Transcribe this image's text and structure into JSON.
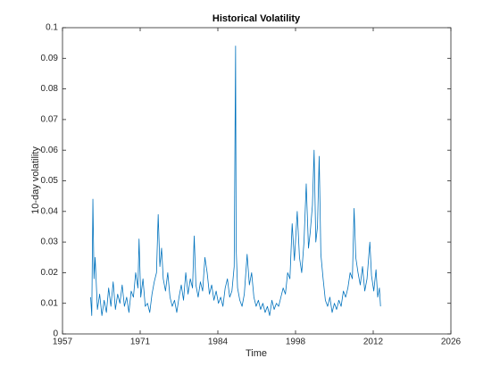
{
  "chart_data": {
    "type": "line",
    "title": "Historical Volatility",
    "x_label": "Time",
    "y_label": "10-day volatility",
    "x": [
      1962.0,
      1962.2,
      1962.4,
      1962.6,
      1962.8,
      1963.2,
      1963.6,
      1964.0,
      1964.4,
      1964.8,
      1965.2,
      1965.6,
      1966.0,
      1966.4,
      1966.8,
      1967.2,
      1967.6,
      1968.0,
      1968.4,
      1968.8,
      1969.2,
      1969.6,
      1970.0,
      1970.4,
      1970.6,
      1970.9,
      1971.3,
      1971.7,
      1972.1,
      1972.5,
      1972.9,
      1973.3,
      1973.7,
      1974.0,
      1974.3,
      1974.6,
      1974.9,
      1975.3,
      1975.7,
      1976.1,
      1976.5,
      1976.9,
      1977.3,
      1977.7,
      1978.1,
      1978.5,
      1978.9,
      1979.3,
      1979.7,
      1980.1,
      1980.4,
      1980.7,
      1981.1,
      1981.5,
      1981.9,
      1982.3,
      1982.7,
      1983.1,
      1983.5,
      1983.9,
      1984.3,
      1984.7,
      1985.1,
      1985.5,
      1985.9,
      1986.3,
      1986.7,
      1987.1,
      1987.5,
      1987.75,
      1987.85,
      1988.1,
      1988.5,
      1988.9,
      1989.3,
      1989.8,
      1990.2,
      1990.6,
      1991.0,
      1991.4,
      1991.8,
      1992.2,
      1992.6,
      1993.0,
      1993.4,
      1993.8,
      1994.2,
      1994.6,
      1995.0,
      1995.4,
      1995.8,
      1996.2,
      1996.6,
      1997.0,
      1997.4,
      1997.8,
      1998.2,
      1998.7,
      1999.1,
      1999.5,
      1999.9,
      2000.3,
      2000.7,
      2001.0,
      2001.4,
      2001.7,
      2002.0,
      2002.3,
      2002.6,
      2002.9,
      2003.3,
      2003.7,
      2004.1,
      2004.5,
      2004.9,
      2005.3,
      2005.7,
      2006.1,
      2006.5,
      2006.9,
      2007.3,
      2007.7,
      2008.1,
      2008.5,
      2008.8,
      2009.1,
      2009.5,
      2009.9,
      2010.3,
      2010.7,
      2011.1,
      2011.6,
      2011.9,
      2012.3,
      2012.7,
      2013.0,
      2013.3,
      2013.5
    ],
    "values": [
      0.012,
      0.006,
      0.044,
      0.018,
      0.025,
      0.008,
      0.013,
      0.006,
      0.011,
      0.007,
      0.015,
      0.009,
      0.017,
      0.008,
      0.013,
      0.01,
      0.016,
      0.009,
      0.012,
      0.007,
      0.014,
      0.012,
      0.02,
      0.015,
      0.031,
      0.012,
      0.018,
      0.009,
      0.01,
      0.007,
      0.013,
      0.017,
      0.02,
      0.039,
      0.022,
      0.028,
      0.018,
      0.014,
      0.02,
      0.012,
      0.009,
      0.011,
      0.007,
      0.012,
      0.016,
      0.011,
      0.02,
      0.013,
      0.018,
      0.015,
      0.032,
      0.016,
      0.012,
      0.017,
      0.014,
      0.025,
      0.02,
      0.013,
      0.016,
      0.011,
      0.014,
      0.01,
      0.012,
      0.009,
      0.015,
      0.018,
      0.012,
      0.014,
      0.022,
      0.094,
      0.028,
      0.015,
      0.011,
      0.009,
      0.013,
      0.026,
      0.016,
      0.02,
      0.012,
      0.009,
      0.011,
      0.008,
      0.01,
      0.007,
      0.009,
      0.006,
      0.011,
      0.008,
      0.01,
      0.009,
      0.012,
      0.015,
      0.013,
      0.02,
      0.018,
      0.036,
      0.024,
      0.04,
      0.025,
      0.02,
      0.03,
      0.049,
      0.028,
      0.033,
      0.042,
      0.06,
      0.03,
      0.035,
      0.058,
      0.026,
      0.018,
      0.011,
      0.009,
      0.012,
      0.007,
      0.01,
      0.008,
      0.011,
      0.009,
      0.014,
      0.012,
      0.015,
      0.02,
      0.018,
      0.041,
      0.025,
      0.02,
      0.016,
      0.022,
      0.014,
      0.018,
      0.03,
      0.019,
      0.014,
      0.021,
      0.012,
      0.015,
      0.009
    ],
    "color": "#0072bd",
    "xlim": [
      1957,
      2026
    ],
    "xticks": [
      1957,
      {
        "value": 1970.8,
        "label": "1971"
      },
      {
        "value": 1984.6,
        "label": "1984"
      },
      {
        "value": 1998.4,
        "label": "1998"
      },
      {
        "value": 2012.2,
        "label": "2012"
      },
      2026
    ],
    "ylim": [
      0,
      0.1
    ],
    "yticks": [
      0,
      0.01,
      0.02,
      0.03,
      0.04,
      0.05,
      0.06,
      0.07,
      0.08,
      0.09,
      0.1
    ]
  }
}
